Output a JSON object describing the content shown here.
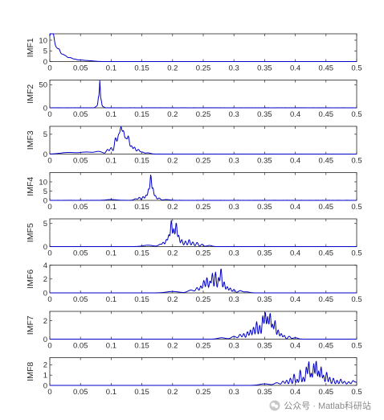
{
  "chart_data": [
    {
      "type": "line",
      "ylabel": "IMF1",
      "xlim": [
        0,
        0.5
      ],
      "ylim": [
        0,
        13
      ],
      "yticks": [
        0,
        5,
        10
      ],
      "xticks": [
        0,
        0.05,
        0.1,
        0.15,
        0.2,
        0.25,
        0.3,
        0.35,
        0.4,
        0.45,
        0.5
      ],
      "xtick_labels": [
        "0",
        "0.05",
        "0.1",
        "0.15",
        "0.2",
        "0.25",
        "0.3",
        "0.35",
        "0.4",
        "0.45",
        "0.5"
      ],
      "series": [
        {
          "color": "#0000c8",
          "peaks": [
            [
              0.001,
              12,
              0.002
            ],
            [
              0.004,
              10,
              0.002
            ],
            [
              0.007,
              7,
              0.002
            ],
            [
              0.011,
              5,
              0.002
            ],
            [
              0.015,
              4.5,
              0.002
            ],
            [
              0.02,
              3,
              0.003
            ],
            [
              0.026,
              2.2,
              0.003
            ],
            [
              0.033,
              1.5,
              0.003
            ],
            [
              0.04,
              1,
              0.004
            ],
            [
              0.05,
              0.6,
              0.005
            ],
            [
              0.06,
              0.35,
              0.006
            ],
            [
              0.07,
              0.2,
              0.006
            ]
          ],
          "noise": 0.05
        }
      ]
    },
    {
      "type": "line",
      "ylabel": "IMF2",
      "xlim": [
        0,
        0.5
      ],
      "ylim": [
        0,
        60
      ],
      "yticks": [
        0,
        50
      ],
      "xticks": [
        0,
        0.05,
        0.1,
        0.15,
        0.2,
        0.25,
        0.3,
        0.35,
        0.4,
        0.45,
        0.5
      ],
      "xtick_labels": [
        "0",
        "0.05",
        "0.1",
        "0.15",
        "0.2",
        "0.25",
        "0.3",
        "0.35",
        "0.4",
        "0.45",
        "0.5"
      ],
      "series": [
        {
          "color": "#0000c8",
          "peaks": [
            [
              0.0815,
              55,
              0.0007
            ],
            [
              0.0795,
              22,
              0.0009
            ],
            [
              0.0835,
              16,
              0.0009
            ],
            [
              0.077,
              4,
              0.002
            ],
            [
              0.086,
              3,
              0.002
            ]
          ],
          "noise": 0.1
        }
      ]
    },
    {
      "type": "line",
      "ylabel": "IMF3",
      "xlim": [
        0,
        0.5
      ],
      "ylim": [
        0,
        7
      ],
      "yticks": [
        0,
        5
      ],
      "xticks": [
        0,
        0.05,
        0.1,
        0.15,
        0.2,
        0.25,
        0.3,
        0.35,
        0.4,
        0.45,
        0.5
      ],
      "xtick_labels": [
        "0",
        "0.05",
        "0.1",
        "0.15",
        "0.2",
        "0.25",
        "0.3",
        "0.35",
        "0.4",
        "0.45",
        "0.5"
      ],
      "series": [
        {
          "color": "#0000c8",
          "peaks": [
            [
              0.03,
              0.4,
              0.012
            ],
            [
              0.06,
              0.5,
              0.01
            ],
            [
              0.08,
              0.6,
              0.006
            ],
            [
              0.094,
              1.1,
              0.002
            ],
            [
              0.1,
              1.6,
              0.002
            ],
            [
              0.107,
              4,
              0.0018
            ],
            [
              0.112,
              4.5,
              0.0018
            ],
            [
              0.116,
              6.2,
              0.0017
            ],
            [
              0.12,
              5.3,
              0.0017
            ],
            [
              0.124,
              3.4,
              0.0017
            ],
            [
              0.128,
              4.3,
              0.0017
            ],
            [
              0.133,
              2,
              0.0018
            ],
            [
              0.138,
              1.7,
              0.0018
            ],
            [
              0.144,
              1.1,
              0.002
            ],
            [
              0.15,
              0.5,
              0.003
            ],
            [
              0.16,
              0.3,
              0.004
            ]
          ],
          "noise": 0.08
        }
      ]
    },
    {
      "type": "line",
      "ylabel": "IMF4",
      "xlim": [
        0,
        0.5
      ],
      "ylim": [
        0,
        15
      ],
      "yticks": [
        0,
        5,
        10
      ],
      "xticks": [
        0,
        0.05,
        0.1,
        0.15,
        0.2,
        0.25,
        0.3,
        0.35,
        0.4,
        0.45,
        0.5
      ],
      "xtick_labels": [
        "0",
        "0.05",
        "0.1",
        "0.15",
        "0.2",
        "0.25",
        "0.3",
        "0.35",
        "0.4",
        "0.45",
        "0.5"
      ],
      "series": [
        {
          "color": "#0000c8",
          "peaks": [
            [
              0.1,
              0.4,
              0.008
            ],
            [
              0.14,
              0.8,
              0.003
            ],
            [
              0.146,
              1.5,
              0.0015
            ],
            [
              0.152,
              2,
              0.0015
            ],
            [
              0.157,
              2.8,
              0.0015
            ],
            [
              0.161,
              6,
              0.0013
            ],
            [
              0.1645,
              13.5,
              0.0012
            ],
            [
              0.168,
              6.5,
              0.0013
            ],
            [
              0.172,
              2.5,
              0.0015
            ],
            [
              0.178,
              1.2,
              0.002
            ],
            [
              0.19,
              0.4,
              0.005
            ]
          ],
          "noise": 0.1
        }
      ]
    },
    {
      "type": "line",
      "ylabel": "IMF5",
      "xlim": [
        0,
        0.5
      ],
      "ylim": [
        0,
        6
      ],
      "yticks": [
        0,
        5
      ],
      "xticks": [
        0,
        0.05,
        0.1,
        0.15,
        0.2,
        0.25,
        0.3,
        0.35,
        0.4,
        0.45,
        0.5
      ],
      "xtick_labels": [
        "0",
        "0.05",
        "0.1",
        "0.15",
        "0.2",
        "0.25",
        "0.3",
        "0.35",
        "0.4",
        "0.45",
        "0.5"
      ],
      "series": [
        {
          "color": "#0000c8",
          "peaks": [
            [
              0.16,
              0.3,
              0.008
            ],
            [
              0.18,
              0.5,
              0.003
            ],
            [
              0.185,
              0.8,
              0.0015
            ],
            [
              0.19,
              1.5,
              0.0015
            ],
            [
              0.194,
              2.5,
              0.0014
            ],
            [
              0.198,
              5.6,
              0.0013
            ],
            [
              0.202,
              3.8,
              0.0013
            ],
            [
              0.206,
              5.1,
              0.0013
            ],
            [
              0.21,
              2.4,
              0.0014
            ],
            [
              0.215,
              1.5,
              0.0015
            ],
            [
              0.221,
              1.2,
              0.0015
            ],
            [
              0.227,
              1.5,
              0.0015
            ],
            [
              0.233,
              1,
              0.0016
            ],
            [
              0.24,
              0.9,
              0.0017
            ],
            [
              0.248,
              0.5,
              0.002
            ],
            [
              0.26,
              0.25,
              0.004
            ]
          ],
          "noise": 0.05
        }
      ]
    },
    {
      "type": "line",
      "ylabel": "IMF6",
      "xlim": [
        0,
        0.5
      ],
      "ylim": [
        0,
        4
      ],
      "yticks": [
        0,
        2,
        4
      ],
      "xticks": [
        0,
        0.05,
        0.1,
        0.15,
        0.2,
        0.25,
        0.3,
        0.35,
        0.4,
        0.45,
        0.5
      ],
      "xtick_labels": [
        "0",
        "0.05",
        "0.1",
        "0.15",
        "0.2",
        "0.25",
        "0.3",
        "0.35",
        "0.4",
        "0.45",
        "0.5"
      ],
      "series": [
        {
          "color": "#0000c8",
          "peaks": [
            [
              0.2,
              0.2,
              0.01
            ],
            [
              0.23,
              0.4,
              0.005
            ],
            [
              0.24,
              0.7,
              0.002
            ],
            [
              0.246,
              1,
              0.0015
            ],
            [
              0.251,
              1.8,
              0.0015
            ],
            [
              0.256,
              2.2,
              0.0014
            ],
            [
              0.261,
              1.7,
              0.0014
            ],
            [
              0.265,
              2.8,
              0.0013
            ],
            [
              0.27,
              3,
              0.0013
            ],
            [
              0.275,
              2.2,
              0.0013
            ],
            [
              0.279,
              3.5,
              0.0013
            ],
            [
              0.284,
              1.6,
              0.0014
            ],
            [
              0.289,
              0.9,
              0.0015
            ],
            [
              0.294,
              0.7,
              0.0015
            ],
            [
              0.3,
              0.5,
              0.0018
            ],
            [
              0.31,
              0.3,
              0.003
            ],
            [
              0.32,
              0.15,
              0.005
            ]
          ],
          "noise": 0.04
        }
      ]
    },
    {
      "type": "line",
      "ylabel": "IMF7",
      "xlim": [
        0,
        0.5
      ],
      "ylim": [
        0,
        3
      ],
      "yticks": [
        0,
        2
      ],
      "xticks": [
        0,
        0.05,
        0.1,
        0.15,
        0.2,
        0.25,
        0.3,
        0.35,
        0.4,
        0.45,
        0.5
      ],
      "xtick_labels": [
        "0",
        "0.05",
        "0.1",
        "0.15",
        "0.2",
        "0.25",
        "0.3",
        "0.35",
        "0.4",
        "0.45",
        "0.5"
      ],
      "series": [
        {
          "color": "#0000c8",
          "peaks": [
            [
              0.28,
              0.15,
              0.006
            ],
            [
              0.3,
              0.3,
              0.004
            ],
            [
              0.31,
              0.5,
              0.002
            ],
            [
              0.316,
              0.6,
              0.0015
            ],
            [
              0.322,
              0.8,
              0.0015
            ],
            [
              0.327,
              1,
              0.0014
            ],
            [
              0.332,
              1.3,
              0.0014
            ],
            [
              0.337,
              1.9,
              0.0013
            ],
            [
              0.342,
              1.5,
              0.0013
            ],
            [
              0.347,
              2.5,
              0.0013
            ],
            [
              0.351,
              2.9,
              0.0013
            ],
            [
              0.355,
              2.4,
              0.0013
            ],
            [
              0.359,
              2.8,
              0.0013
            ],
            [
              0.363,
              1.6,
              0.0013
            ],
            [
              0.367,
              2,
              0.0013
            ],
            [
              0.372,
              1,
              0.0014
            ],
            [
              0.377,
              0.6,
              0.0015
            ],
            [
              0.382,
              0.4,
              0.0015
            ],
            [
              0.39,
              0.3,
              0.002
            ],
            [
              0.4,
              0.15,
              0.004
            ]
          ],
          "noise": 0.03
        }
      ]
    },
    {
      "type": "line",
      "ylabel": "IMF8",
      "xlim": [
        0,
        0.5
      ],
      "ylim": [
        0,
        2.7
      ],
      "yticks": [
        0,
        1,
        2
      ],
      "xticks": [
        0,
        0.05,
        0.1,
        0.15,
        0.2,
        0.25,
        0.3,
        0.35,
        0.4,
        0.45,
        0.5
      ],
      "xtick_labels": [
        "0",
        "0.05",
        "0.1",
        "0.15",
        "0.2",
        "0.25",
        "0.3",
        "0.35",
        "0.4",
        "0.45",
        "0.5"
      ],
      "series": [
        {
          "color": "#0000c8",
          "peaks": [
            [
              0.35,
              0.15,
              0.008
            ],
            [
              0.37,
              0.25,
              0.004
            ],
            [
              0.38,
              0.4,
              0.002
            ],
            [
              0.386,
              0.5,
              0.0015
            ],
            [
              0.392,
              0.7,
              0.0015
            ],
            [
              0.398,
              1.1,
              0.0013
            ],
            [
              0.403,
              0.6,
              0.0013
            ],
            [
              0.408,
              1.5,
              0.0013
            ],
            [
              0.413,
              0.8,
              0.0013
            ],
            [
              0.418,
              1.8,
              0.0013
            ],
            [
              0.422,
              2.3,
              0.0012
            ],
            [
              0.426,
              1.2,
              0.0012
            ],
            [
              0.43,
              2.1,
              0.0012
            ],
            [
              0.434,
              2.4,
              0.0012
            ],
            [
              0.438,
              1.4,
              0.0012
            ],
            [
              0.442,
              1.8,
              0.0012
            ],
            [
              0.446,
              1,
              0.0013
            ],
            [
              0.451,
              1.3,
              0.0013
            ],
            [
              0.456,
              0.8,
              0.0014
            ],
            [
              0.462,
              0.7,
              0.0015
            ],
            [
              0.468,
              0.5,
              0.0015
            ],
            [
              0.474,
              0.6,
              0.0016
            ],
            [
              0.48,
              0.4,
              0.0018
            ],
            [
              0.487,
              0.35,
              0.002
            ],
            [
              0.494,
              0.45,
              0.002
            ],
            [
              0.499,
              0.3,
              0.002
            ]
          ],
          "noise": 0.04
        }
      ]
    }
  ],
  "watermark": {
    "text": "公众号 · Matlab科研站",
    "icon": "wechat-logo-icon"
  }
}
